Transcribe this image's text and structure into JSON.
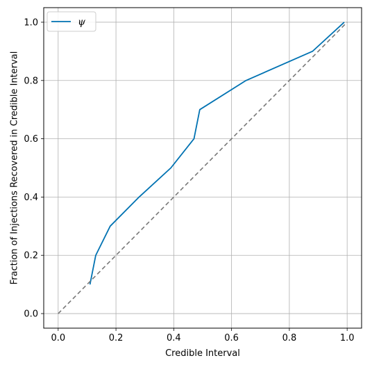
{
  "chart_data": {
    "type": "line",
    "title": "",
    "xlabel": "Credible Interval",
    "ylabel": "Fraction of Injections Recovered in Credible Interval",
    "xlim": [
      -0.05,
      1.05
    ],
    "ylim": [
      -0.05,
      1.05
    ],
    "x_ticks": [
      0.0,
      0.2,
      0.4,
      0.6,
      0.8,
      1.0
    ],
    "x_tick_labels": [
      "0.0",
      "0.2",
      "0.4",
      "0.6",
      "0.8",
      "1.0"
    ],
    "y_ticks": [
      0.0,
      0.2,
      0.4,
      0.6,
      0.8,
      1.0
    ],
    "y_tick_labels": [
      "0.0",
      "0.2",
      "0.4",
      "0.6",
      "0.8",
      "1.0"
    ],
    "grid": true,
    "legend": {
      "position": "top-left",
      "entries": [
        "ψ"
      ]
    },
    "series": [
      {
        "name": "ψ",
        "color": "#0072B2",
        "style": "solid",
        "x": [
          0.11,
          0.12,
          0.13,
          0.18,
          0.28,
          0.39,
          0.47,
          0.49,
          0.65,
          0.88,
          0.99
        ],
        "y": [
          0.1,
          0.15,
          0.2,
          0.3,
          0.4,
          0.5,
          0.6,
          0.7,
          0.8,
          0.9,
          1.0
        ]
      },
      {
        "color": "#777777",
        "style": "dashed",
        "x": [
          0.0,
          1.0
        ],
        "y": [
          0.0,
          1.0
        ]
      }
    ]
  }
}
